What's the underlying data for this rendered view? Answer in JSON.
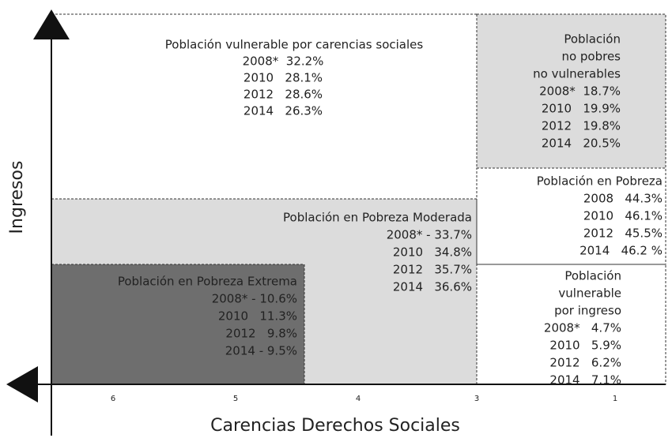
{
  "axes": {
    "y_label": "Ingresos",
    "x_label": "Carencias Derechos Sociales",
    "x_ticks": [
      "6",
      "5",
      "4",
      "3",
      "1"
    ]
  },
  "regions": [
    {
      "lines": [
        "Población vulnerable por carencias sociales",
        "2008*  32.2%",
        "2010   28.1%",
        "2012   28.6%",
        "2014   26.3%"
      ]
    },
    {
      "lines": [
        "Población",
        "no pobres",
        "no vulnerables",
        "2008*  18.7%",
        "2010   19.9%",
        "2012   19.8%",
        "2014   20.5%"
      ]
    },
    {
      "lines": [
        "Población en Pobreza",
        "2008   44.3%",
        "2010   46.1%",
        "2012   45.5%",
        "2014   46.2 %"
      ]
    },
    {
      "lines": [
        "Población en Pobreza Moderada",
        "2008* - 33.7%",
        "2010   34.8%",
        "2012   35.7%",
        "2014   36.6%"
      ]
    },
    {
      "lines": [
        "Población en Pobreza Extrema",
        "2008* - 10.6%",
        "2010   11.3%",
        "2012   9.8%",
        "2014 - 9.5%"
      ]
    },
    {
      "lines": [
        "Población",
        "vulnerable",
        "por ingreso",
        "2008*   4.7%",
        "2010   5.9%",
        "2012   6.2%",
        "2014   7.1%"
      ]
    }
  ]
}
